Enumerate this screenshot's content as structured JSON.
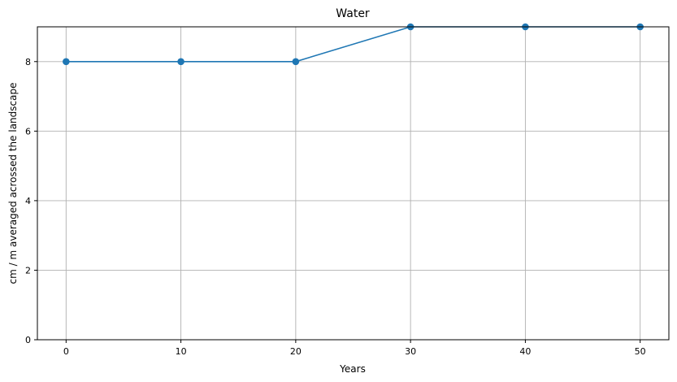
{
  "chart_data": {
    "type": "line",
    "title": "Water",
    "xlabel": "Years",
    "ylabel": "cm / m averaged acrossed the landscape",
    "x": [
      0,
      10,
      20,
      30,
      40,
      50
    ],
    "series": [
      {
        "values": [
          8,
          8,
          8,
          9,
          9,
          9
        ],
        "color": "#1f77b4",
        "marker": "circle"
      }
    ],
    "xlim": [
      -2.5,
      52.5
    ],
    "ylim": [
      0,
      9
    ],
    "xticks": [
      0,
      10,
      20,
      30,
      40,
      50
    ],
    "yticks": [
      0,
      2,
      4,
      6,
      8
    ],
    "grid": true,
    "legend": "none"
  }
}
